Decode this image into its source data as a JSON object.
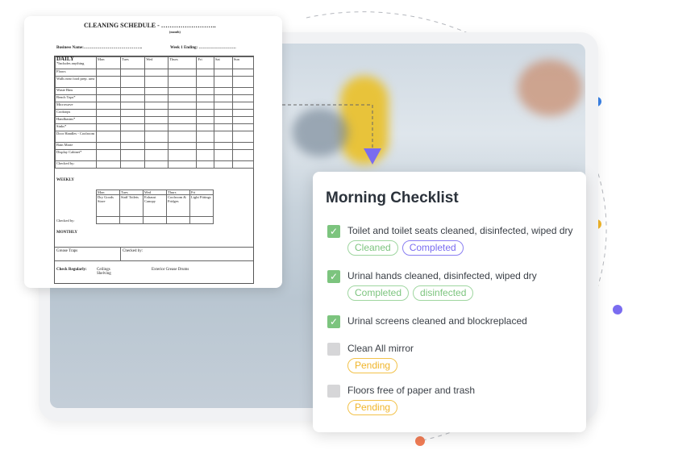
{
  "schedule": {
    "title": "CLEANING SCHEDULE - ……………………..",
    "month_label": "(month)",
    "business_name": "Business Name:……………………………………..",
    "week_ending": "Week 1 Ending: ……………………….",
    "daily_label": "DAILY",
    "daily_note": "*Includes anything",
    "days": [
      "Mon",
      "Tues",
      "Wed",
      "Thurs",
      "Fri",
      "Sat",
      "Sun"
    ],
    "daily_rows": [
      "Floors",
      "Walls near food prep. area",
      "Waste Bins",
      "Bench Tops*",
      "Microwave",
      "Cooktops",
      "Handbasins*",
      "Sinks*",
      "Door Handles - Coolroom",
      "Bain Marie",
      "Display Cabinet*",
      "Checked by:"
    ],
    "weekly_label": "WEEKLY",
    "weekly_days": [
      "Mon",
      "Tues",
      "Wed",
      "Thurs",
      "Fri"
    ],
    "weekly_tasks": [
      "Dry Goods Store",
      "Staff Toilets",
      "Exhaust Canopy",
      "Coolroom & Fridges",
      "Light Fittings"
    ],
    "weekly_checked": "Checked by:",
    "monthly_label": "MONTHLY",
    "grease_traps": "Grease Traps",
    "monthly_checked": "Checked by:",
    "check_regularly": "Check Regularly:",
    "regular_items": "Ceilings Shelving",
    "exterior": "Exterior Grease Drums"
  },
  "checklist": {
    "title": "Morning Checklist",
    "items": [
      {
        "text": "Toilet and toilet seats cleaned, disinfected, wiped dry",
        "checked": true,
        "tags": [
          {
            "label": "Cleaned",
            "color": "#7cc47e"
          },
          {
            "label": "Completed",
            "color": "#7a6cf0"
          }
        ]
      },
      {
        "text": "Urinal hands cleaned, disinfected, wiped dry",
        "checked": true,
        "tags": [
          {
            "label": "Completed",
            "color": "#7cc47e"
          },
          {
            "label": "disinfected",
            "color": "#7cc47e"
          }
        ]
      },
      {
        "text": "Urinal screens cleaned and blockreplaced",
        "checked": true,
        "tags": []
      },
      {
        "text": "Clean All mirror",
        "checked": false,
        "tags": [
          {
            "label": "Pending",
            "color": "#f0b52a"
          }
        ]
      },
      {
        "text": "Floors free of paper and trash",
        "checked": false,
        "tags": [
          {
            "label": "Pending",
            "color": "#f0b52a"
          }
        ]
      }
    ]
  },
  "decor": {
    "dot_colors": [
      "#3b82e6",
      "#f0b52a",
      "#7a6cf0",
      "#f07c55"
    ],
    "arrow_color": "#7a6cf0"
  }
}
